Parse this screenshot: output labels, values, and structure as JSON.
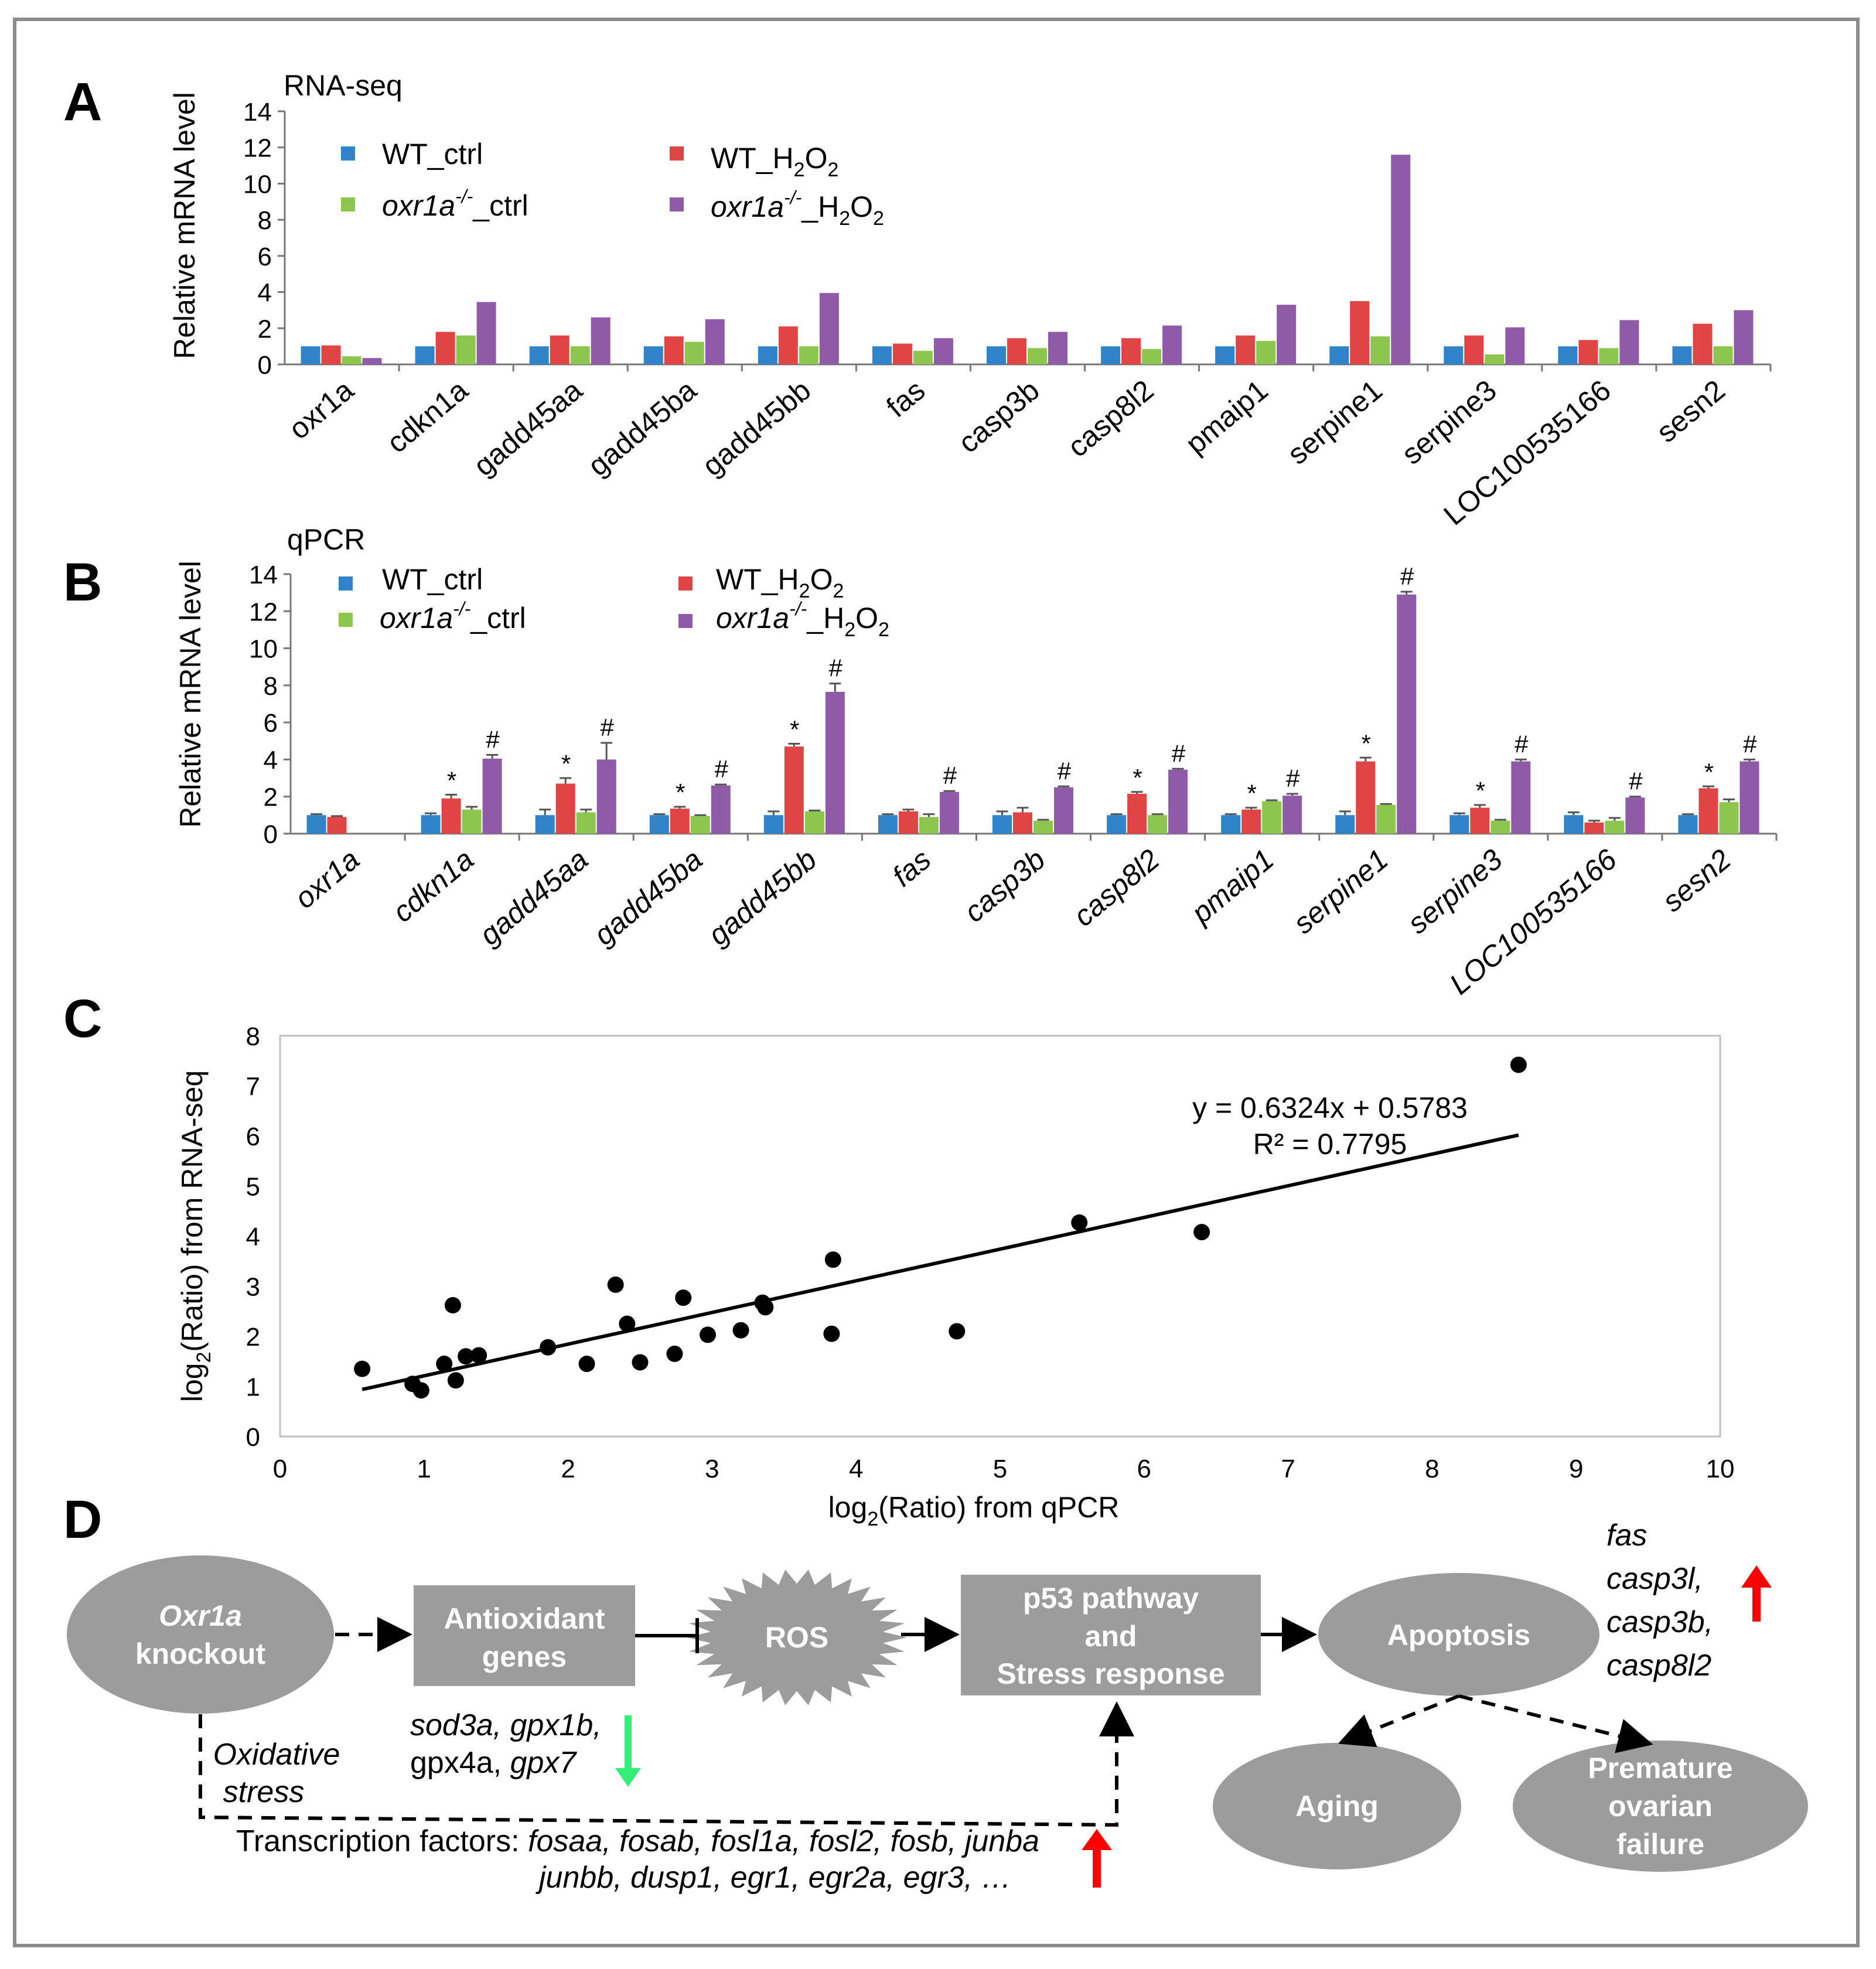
{
  "colors": {
    "WT_ctrl": "#2f83c9",
    "WT_H2O2": "#e04545",
    "oxr1a_ctrl": "#8dc64e",
    "oxr1a_H2O2": "#8f5aa8",
    "node": "#9c9c9c",
    "up_arrow": "#ff0000",
    "down_arrow": "#33ee77"
  },
  "panel_labels": [
    "A",
    "B",
    "C",
    "D"
  ],
  "legend": {
    "wt_ctrl": "WT_ctrl",
    "wt_h2o2_prefix": "WT_H",
    "wt_h2o2_sub1": "2",
    "wt_h2o2_mid": "O",
    "wt_h2o2_sub2": "2",
    "oxr_italic": "oxr1a",
    "oxr_sup": "-/-",
    "oxr_ctrl_suffix": "_ctrl",
    "oxr_h2o2_prefix": "_H",
    "oxr_h2o2_sub1": "2",
    "oxr_h2o2_mid": "O",
    "oxr_h2o2_sub2": "2"
  },
  "chart_data": [
    {
      "type": "bar",
      "title": "RNA-seq",
      "ylabel": "Relative mRNA level",
      "ylim": [
        0,
        14
      ],
      "yticks": [
        "0",
        "2",
        "4",
        "6",
        "8",
        "10",
        "12",
        "14"
      ],
      "categories": [
        "oxr1a",
        "cdkn1a",
        "gadd45aa",
        "gadd45ba",
        "gadd45bb",
        "fas",
        "casp3b",
        "casp8l2",
        "pmaip1",
        "serpine1",
        "serpine3",
        "LOC100535166",
        "sesn2"
      ],
      "series": [
        {
          "name": "WT_ctrl",
          "values": [
            1,
            1,
            1,
            1,
            1,
            1,
            1,
            1,
            1,
            1,
            1,
            1,
            1
          ]
        },
        {
          "name": "WT_H2O2",
          "values": [
            1.05,
            1.8,
            1.6,
            1.55,
            2.1,
            1.15,
            1.45,
            1.45,
            1.6,
            3.5,
            1.6,
            1.35,
            2.25
          ]
        },
        {
          "name": "oxr1a-/-_ctrl",
          "values": [
            0.45,
            1.6,
            1.0,
            1.25,
            1.0,
            0.75,
            0.9,
            0.85,
            1.3,
            1.55,
            0.55,
            0.9,
            1.0
          ]
        },
        {
          "name": "oxr1a-/-_H2O2",
          "values": [
            0.35,
            3.45,
            2.6,
            2.5,
            3.95,
            1.45,
            1.8,
            2.15,
            3.3,
            11.6,
            2.05,
            2.45,
            3.0
          ]
        }
      ]
    },
    {
      "type": "bar",
      "title": "qPCR",
      "ylabel": "Relative mRNA level",
      "ylim": [
        0,
        14
      ],
      "yticks": [
        "0",
        "2",
        "4",
        "6",
        "8",
        "10",
        "12",
        "14"
      ],
      "categories": [
        "oxr1a",
        "cdkn1a",
        "gadd45aa",
        "gadd45ba",
        "gadd45bb",
        "fas",
        "casp3b",
        "casp8l2",
        "pmaip1",
        "serpine1",
        "serpine3",
        "LOC100535166",
        "sesn2"
      ],
      "series": [
        {
          "name": "WT_ctrl",
          "values": [
            1,
            1,
            1,
            1,
            1,
            1,
            1,
            1,
            1,
            1,
            1,
            1,
            1
          ],
          "errors": [
            0.05,
            0.1,
            0.3,
            0.05,
            0.2,
            0.05,
            0.2,
            0.05,
            0.05,
            0.2,
            0.1,
            0.15,
            0.05
          ]
        },
        {
          "name": "WT_H2O2",
          "values": [
            0.9,
            1.9,
            2.7,
            1.35,
            4.7,
            1.2,
            1.15,
            2.15,
            1.3,
            3.9,
            1.4,
            0.6,
            2.45
          ],
          "errors": [
            0.05,
            0.2,
            0.3,
            0.1,
            0.15,
            0.1,
            0.25,
            0.1,
            0.1,
            0.2,
            0.15,
            0.1,
            0.1
          ]
        },
        {
          "name": "oxr1a-/-_ctrl",
          "values": [
            0,
            1.3,
            1.15,
            0.95,
            1.2,
            0.9,
            0.7,
            1.0,
            1.75,
            1.55,
            0.7,
            0.7,
            1.7
          ],
          "errors": [
            0,
            0.15,
            0.15,
            0.05,
            0.05,
            0.15,
            0.05,
            0.05,
            0.05,
            0.05,
            0.05,
            0.15,
            0.15
          ]
        },
        {
          "name": "oxr1a-/-_H2O2",
          "values": [
            0,
            4.05,
            4.0,
            2.6,
            7.65,
            2.25,
            2.5,
            3.45,
            2.05,
            12.9,
            3.9,
            1.95,
            3.9
          ],
          "errors": [
            0,
            0.2,
            0.9,
            0.05,
            0.45,
            0.05,
            0.05,
            0.05,
            0.1,
            0.15,
            0.1,
            0.05,
            0.1
          ]
        }
      ],
      "star_marks": [
        false,
        true,
        true,
        true,
        true,
        false,
        false,
        true,
        true,
        true,
        true,
        false,
        true
      ],
      "hash_marks": [
        false,
        true,
        true,
        true,
        true,
        true,
        true,
        true,
        true,
        true,
        true,
        true,
        true
      ],
      "star_symbol": "*",
      "hash_symbol": "#"
    },
    {
      "type": "scatter",
      "xlabel_prefix": "log",
      "xlabel_sub": "2",
      "xlabel_suffix": "(Ratio) from qPCR",
      "ylabel_prefix": "log",
      "ylabel_sub": "2",
      "ylabel_suffix": "(Ratio) from RNA-seq",
      "xlim": [
        0,
        10
      ],
      "ylim": [
        0,
        8
      ],
      "xticks": [
        "0",
        "1",
        "2",
        "3",
        "4",
        "5",
        "6",
        "7",
        "8",
        "9",
        "10"
      ],
      "yticks": [
        "0",
        "1",
        "2",
        "3",
        "4",
        "5",
        "6",
        "7",
        "8"
      ],
      "points": [
        [
          0.57,
          1.35
        ],
        [
          0.92,
          1.05
        ],
        [
          0.98,
          0.92
        ],
        [
          1.14,
          1.45
        ],
        [
          1.2,
          2.62
        ],
        [
          1.22,
          1.12
        ],
        [
          1.29,
          1.6
        ],
        [
          1.38,
          1.62
        ],
        [
          1.86,
          1.78
        ],
        [
          2.13,
          1.45
        ],
        [
          2.33,
          3.03
        ],
        [
          2.41,
          2.25
        ],
        [
          2.5,
          1.48
        ],
        [
          2.74,
          1.65
        ],
        [
          2.8,
          2.77
        ],
        [
          2.97,
          2.03
        ],
        [
          3.2,
          2.12
        ],
        [
          3.35,
          2.67
        ],
        [
          3.37,
          2.58
        ],
        [
          3.83,
          2.05
        ],
        [
          3.84,
          3.53
        ],
        [
          4.7,
          2.1
        ],
        [
          5.55,
          4.27
        ],
        [
          6.4,
          4.08
        ],
        [
          8.6,
          7.42
        ]
      ],
      "fit": {
        "slope": 0.6324,
        "intercept": 0.5783,
        "x_range": [
          0.57,
          8.6
        ]
      },
      "equation_text": "y = 0.6324x + 0.5783",
      "r2_text": "R² = 0.7795"
    }
  ],
  "diagram": {
    "nodes": {
      "oxr1a_line1": "Oxr1a",
      "oxr1a_line2": "knockout",
      "antioxidant_line1": "Antioxidant",
      "antioxidant_line2": "genes",
      "ros": "ROS",
      "p53_line1": "p53 pathway",
      "p53_line2": "and",
      "p53_line3": "Stress response",
      "apoptosis": "Apoptosis",
      "aging": "Aging",
      "pof_line1": "Premature",
      "pof_line2": "ovarian",
      "pof_line3": "failure"
    },
    "antioxidant_genes_line1": "sod3a, gpx1b,",
    "antioxidant_genes_line2_a": "gpx4a, ",
    "antioxidant_genes_line2_b": "gpx7",
    "oxidative_line1": "Oxidative",
    "oxidative_line2": "stress",
    "tf_label": "Transcription factors: ",
    "tf_line1": "fosaa, fosab, fosl1a, fosl2, fosb, junba",
    "tf_line2": "junbb, dusp1, egr1, egr2a, egr3, …",
    "apoptosis_genes": [
      "fas",
      "casp3l,",
      "casp3b,",
      "casp8l2"
    ]
  }
}
